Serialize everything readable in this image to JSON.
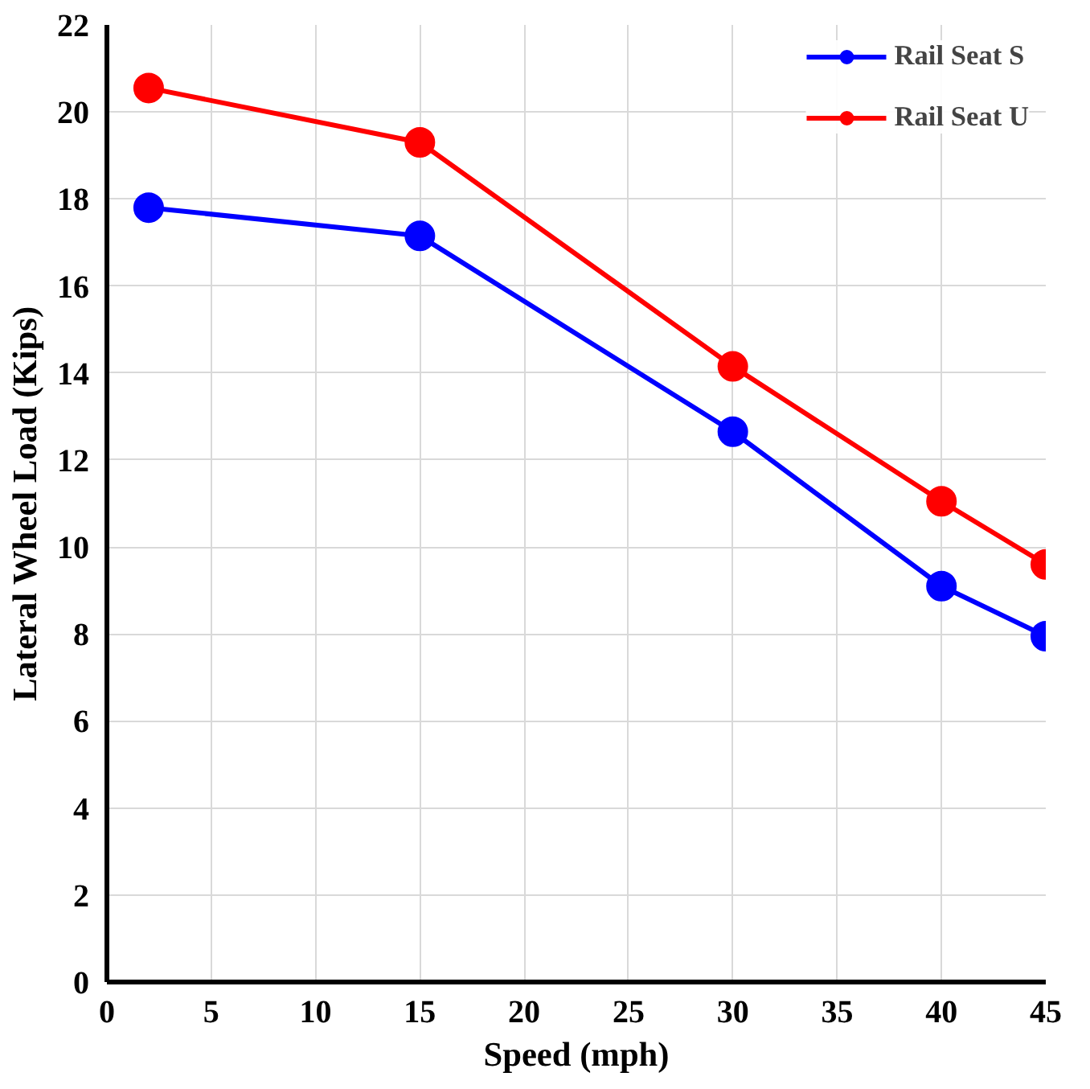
{
  "chart_data": {
    "type": "line",
    "xlabel": "Speed (mph)",
    "ylabel": "Lateral Wheel Load (Kips)",
    "x": [
      2,
      15,
      30,
      40,
      45
    ],
    "series": [
      {
        "name": "Rail Seat S",
        "color": "#0000ff",
        "values": [
          17.8,
          17.15,
          12.65,
          9.1,
          7.95
        ]
      },
      {
        "name": "Rail Seat U",
        "color": "#ff0000",
        "values": [
          20.55,
          19.3,
          14.15,
          11.05,
          9.6
        ]
      }
    ],
    "xlim": [
      0,
      45
    ],
    "xticks": [
      0,
      5,
      10,
      15,
      20,
      25,
      30,
      35,
      40,
      45
    ],
    "ylim": [
      0,
      22
    ],
    "yticks": [
      0,
      2,
      4,
      6,
      8,
      10,
      12,
      14,
      16,
      18,
      20,
      22
    ],
    "grid": true,
    "legend": "top right",
    "marker": "circle",
    "line_style": "solid"
  }
}
